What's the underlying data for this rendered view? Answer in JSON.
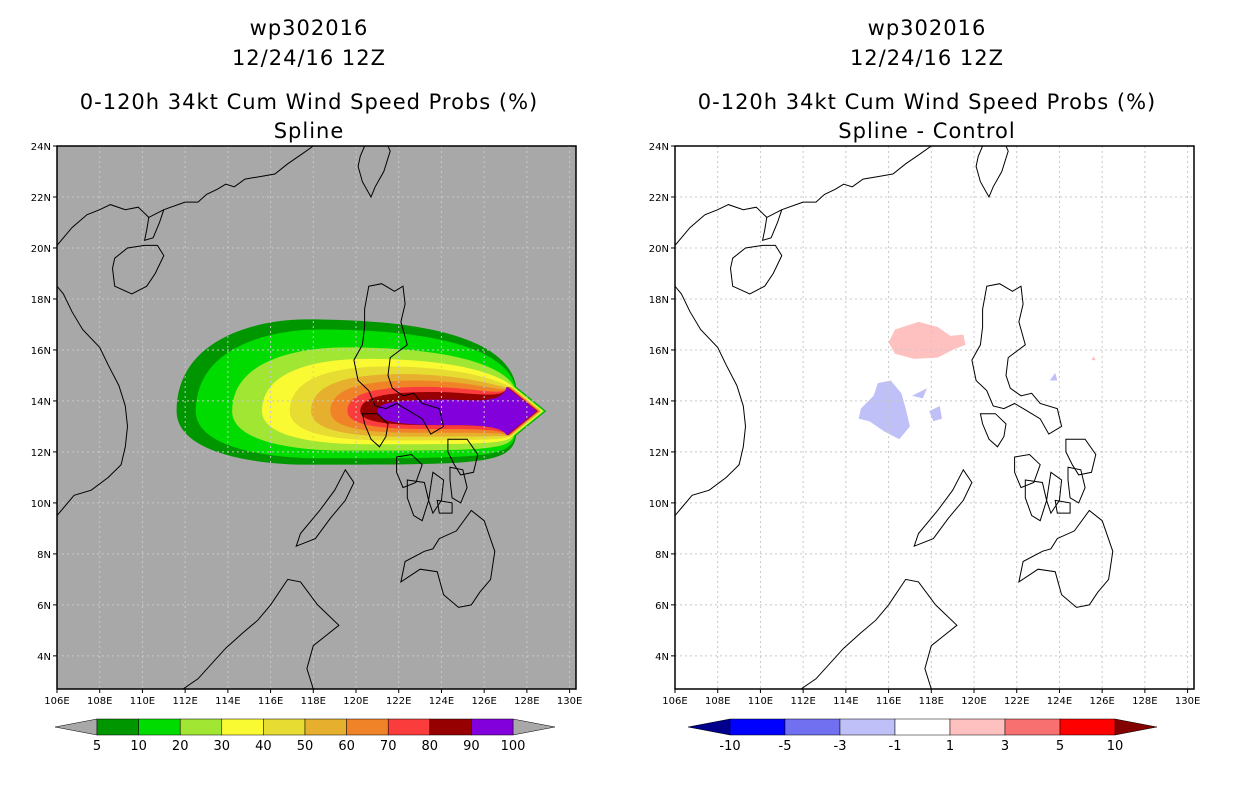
{
  "panels": [
    {
      "id": "left",
      "storm": "wp302016",
      "datetime": "12/24/16 12Z",
      "product": "0-120h 34kt Cum Wind Speed Probs (%)",
      "subtitle": "Spline",
      "map_background": "#a8a8a8",
      "colorbar": {
        "colors": [
          "#009600",
          "#00dc00",
          "#a0e632",
          "#fafa32",
          "#e6dc32",
          "#e6af2d",
          "#f08228",
          "#fa3c3c",
          "#960000",
          "#8200dc"
        ],
        "labels": [
          "5",
          "10",
          "20",
          "30",
          "40",
          "50",
          "60",
          "70",
          "80",
          "90",
          "100"
        ],
        "arrow_low": "#a8a8a8",
        "arrow_high": "#a8a8a8"
      }
    },
    {
      "id": "right",
      "storm": "wp302016",
      "datetime": "12/24/16 12Z",
      "product": "0-120h 34kt Cum Wind Speed Probs (%)",
      "subtitle": "Spline - Control",
      "map_background": "#ffffff",
      "colorbar": {
        "colors": [
          "#0000ff",
          "#7070f0",
          "#c0c0f8",
          "#ffffff",
          "#ffc0c0",
          "#f87070",
          "#ff0000"
        ],
        "labels": [
          "-10",
          "-5",
          "-3",
          "-1",
          "1",
          "3",
          "5",
          "10"
        ],
        "arrow_low": "#00008c",
        "arrow_high": "#820000"
      }
    }
  ],
  "map_axes": {
    "lon_labels": [
      "106E",
      "108E",
      "110E",
      "112E",
      "114E",
      "116E",
      "118E",
      "120E",
      "122E",
      "124E",
      "126E",
      "128E",
      "130E"
    ],
    "lat_labels": [
      "4N",
      "6N",
      "8N",
      "10N",
      "12N",
      "14N",
      "16N",
      "18N",
      "20N",
      "22N",
      "24N"
    ],
    "lon_range": [
      106,
      130.3
    ],
    "lat_range": [
      2.7,
      24
    ]
  },
  "probability_field": {
    "levels": [
      5,
      10,
      20,
      30,
      40,
      50,
      60,
      70,
      80,
      90
    ],
    "center_lon_lat": [
      123.5,
      13.6
    ],
    "east_edge_lon": 128.9
  },
  "difference_field": {
    "positive_regions": [
      {
        "label": "3",
        "approx_center_lon_lat": [
          117.7,
          16.2
        ]
      },
      {
        "label": "1",
        "approx_center_lon_lat": [
          125.6,
          15.6
        ]
      }
    ],
    "negative_regions": [
      {
        "label": "-1",
        "approx_center_lon_lat": [
          115.9,
          13.9
        ]
      },
      {
        "label": "-1",
        "approx_center_lon_lat": [
          123.7,
          14.9
        ]
      }
    ]
  }
}
